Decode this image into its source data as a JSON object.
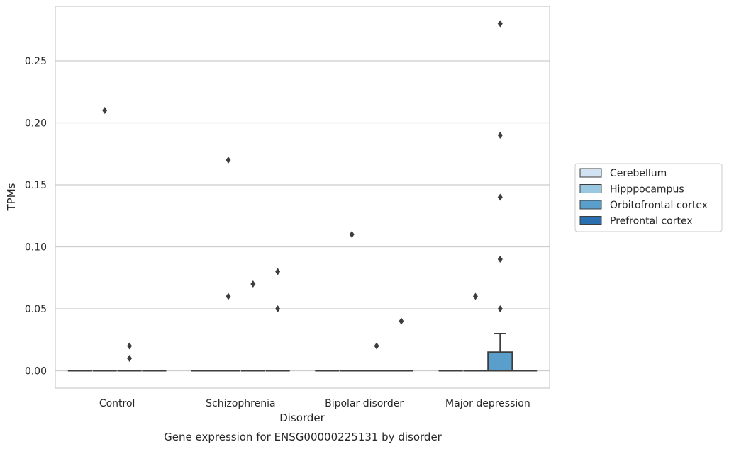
{
  "chart_data": {
    "type": "box",
    "xlabel": "Disorder",
    "ylabel": "TPMs",
    "caption": "Gene expression for ENSG00000225131 by disorder",
    "categories": [
      "Control",
      "Schizophrenia",
      "Bipolar disorder",
      "Major depression"
    ],
    "yticks": [
      "0.00",
      "0.05",
      "0.10",
      "0.15",
      "0.20",
      "0.25"
    ],
    "ytick_values": [
      0.0,
      0.05,
      0.1,
      0.15,
      0.2,
      0.25
    ],
    "ylim": [
      -0.014,
      0.294
    ],
    "grid": "horizontal",
    "legend_position": "right",
    "series": [
      {
        "name": "Cerebellum",
        "color": "#d1e2f2",
        "boxes": [
          {
            "category": "Control",
            "q1": 0,
            "median": 0,
            "q3": 0,
            "whisker_low": 0,
            "whisker_high": 0,
            "outliers": []
          },
          {
            "category": "Schizophrenia",
            "q1": 0,
            "median": 0,
            "q3": 0,
            "whisker_low": 0,
            "whisker_high": 0,
            "outliers": []
          },
          {
            "category": "Bipolar disorder",
            "q1": 0,
            "median": 0,
            "q3": 0,
            "whisker_low": 0,
            "whisker_high": 0,
            "outliers": []
          },
          {
            "category": "Major depression",
            "q1": 0,
            "median": 0,
            "q3": 0,
            "whisker_low": 0,
            "whisker_high": 0,
            "outliers": []
          }
        ]
      },
      {
        "name": "Hipppocampus",
        "color": "#9ac8e0",
        "boxes": [
          {
            "category": "Control",
            "q1": 0,
            "median": 0,
            "q3": 0,
            "whisker_low": 0,
            "whisker_high": 0,
            "outliers": [
              0.21
            ]
          },
          {
            "category": "Schizophrenia",
            "q1": 0,
            "median": 0,
            "q3": 0,
            "whisker_low": 0,
            "whisker_high": 0,
            "outliers": [
              0.06,
              0.17
            ]
          },
          {
            "category": "Bipolar disorder",
            "q1": 0,
            "median": 0,
            "q3": 0,
            "whisker_low": 0,
            "whisker_high": 0,
            "outliers": [
              0.11
            ]
          },
          {
            "category": "Major depression",
            "q1": 0,
            "median": 0,
            "q3": 0,
            "whisker_low": 0,
            "whisker_high": 0,
            "outliers": [
              0.06
            ]
          }
        ]
      },
      {
        "name": "Orbitofrontal cortex",
        "color": "#5a9fcc",
        "boxes": [
          {
            "category": "Control",
            "q1": 0,
            "median": 0,
            "q3": 0,
            "whisker_low": 0,
            "whisker_high": 0,
            "outliers": [
              0.01,
              0.02
            ]
          },
          {
            "category": "Schizophrenia",
            "q1": 0,
            "median": 0,
            "q3": 0,
            "whisker_low": 0,
            "whisker_high": 0,
            "outliers": [
              0.07
            ]
          },
          {
            "category": "Bipolar disorder",
            "q1": 0,
            "median": 0,
            "q3": 0,
            "whisker_low": 0,
            "whisker_high": 0,
            "outliers": [
              0.02
            ]
          },
          {
            "category": "Major depression",
            "q1": 0,
            "median": 0,
            "q3": 0.015,
            "whisker_low": 0,
            "whisker_high": 0.03,
            "outliers": [
              0.05,
              0.09,
              0.14,
              0.19,
              0.28
            ]
          }
        ]
      },
      {
        "name": "Prefrontal cortex",
        "color": "#2a6fb0",
        "boxes": [
          {
            "category": "Control",
            "q1": 0,
            "median": 0,
            "q3": 0,
            "whisker_low": 0,
            "whisker_high": 0,
            "outliers": []
          },
          {
            "category": "Schizophrenia",
            "q1": 0,
            "median": 0,
            "q3": 0,
            "whisker_low": 0,
            "whisker_high": 0,
            "outliers": [
              0.05,
              0.08
            ]
          },
          {
            "category": "Bipolar disorder",
            "q1": 0,
            "median": 0,
            "q3": 0,
            "whisker_low": 0,
            "whisker_high": 0,
            "outliers": [
              0.04
            ]
          },
          {
            "category": "Major depression",
            "q1": 0,
            "median": 0,
            "q3": 0,
            "whisker_low": 0,
            "whisker_high": 0,
            "outliers": []
          }
        ]
      }
    ]
  }
}
